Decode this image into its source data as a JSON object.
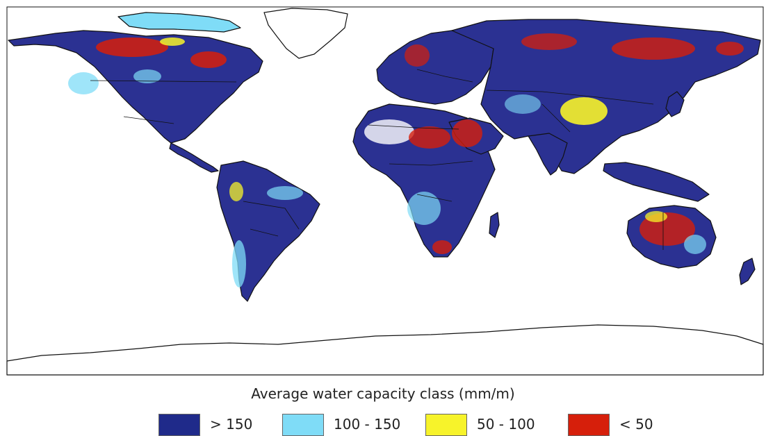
{
  "legend": {
    "title": "Average water capacity class (mm/m)",
    "items": [
      {
        "label": "> 150",
        "color": "#1f2a8a"
      },
      {
        "label": "100 - 150",
        "color": "#7fdcf7"
      },
      {
        "label": "50 - 100",
        "color": "#f7f32a"
      },
      {
        "label": "< 50",
        "color": "#d61f0b"
      }
    ]
  },
  "map": {
    "land_color": "#2b3192",
    "ocean_color": "#ffffff",
    "border_color": "#111111"
  }
}
